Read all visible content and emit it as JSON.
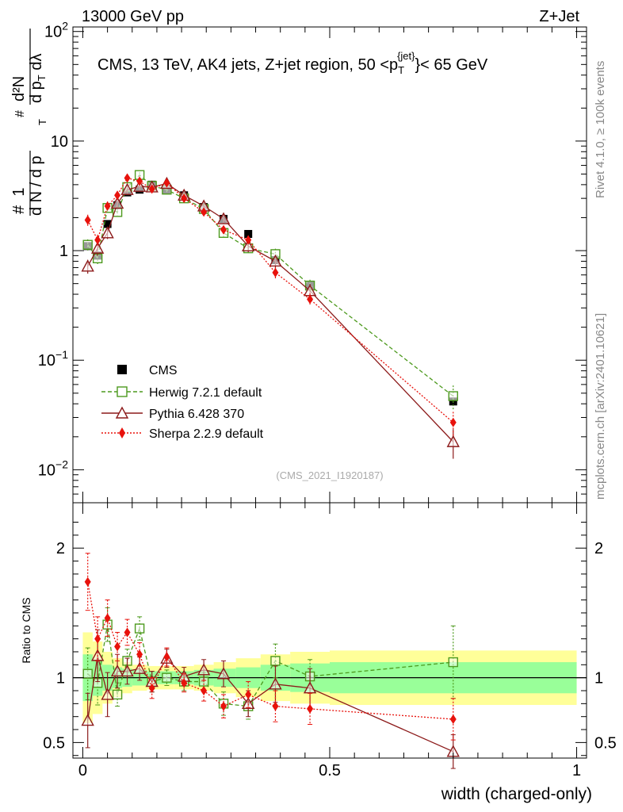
{
  "header": {
    "left": "13000 GeV pp",
    "right": "Z+Jet"
  },
  "side_labels": {
    "rivet": "Rivet 4.1.0, ≥ 100k events",
    "mcplots": "mcplots.cern.ch [arXiv:2401.10621]"
  },
  "chart_data": [
    {
      "type": "scatter",
      "panel": "main",
      "title_parts": [
        "CMS, 13 TeV, AK4 jets, Z+jet region, 50 <p",
        "T",
        "{jet}",
        "}< 65 GeV"
      ],
      "ylabel_parts": {
        "prefix": "#",
        "one": "1",
        "den": "d N / d p",
        "den_sub": "T",
        "num_hash": "#",
        "num": "d²N",
        "num_den": "d p",
        "num_den_sub": "T",
        "num_den_tail": " dλ"
      },
      "yscale": "log",
      "ylim": [
        0.005,
        110
      ],
      "xlim": [
        -0.02,
        1.02
      ],
      "y_ticks": [
        {
          "value": 0.01,
          "base": "10",
          "exp": "−2"
        },
        {
          "value": 0.1,
          "base": "10",
          "exp": "−1"
        },
        {
          "value": 1,
          "label": "1"
        },
        {
          "value": 10,
          "label": "10"
        },
        {
          "value": 100,
          "base": "10",
          "exp": "2"
        }
      ],
      "watermark": "(CMS_2021_I1920187)",
      "legend_position": "middle-left",
      "series": [
        {
          "name": "CMS",
          "style": "data",
          "color": "#000000",
          "x": [
            0.01,
            0.03,
            0.05,
            0.07,
            0.09,
            0.115,
            0.14,
            0.17,
            0.205,
            0.245,
            0.285,
            0.335,
            0.39,
            0.46,
            0.75
          ],
          "y": [
            1.1,
            0.9,
            1.75,
            2.6,
            3.4,
            3.6,
            4.0,
            3.6,
            3.2,
            2.5,
            1.95,
            1.42,
            0.82,
            0.48,
            0.042
          ]
        },
        {
          "name": "Herwig 7.2.1 default",
          "style": "open-square-dashed",
          "color": "#4d9a1e",
          "x": [
            0.01,
            0.03,
            0.05,
            0.07,
            0.09,
            0.115,
            0.14,
            0.17,
            0.205,
            0.245,
            0.285,
            0.335,
            0.39,
            0.46,
            0.75
          ],
          "y": [
            1.13,
            0.85,
            2.45,
            2.25,
            3.8,
            4.9,
            3.9,
            3.6,
            3.0,
            2.4,
            1.45,
            1.05,
            0.93,
            0.48,
            0.047
          ]
        },
        {
          "name": "Pythia 6.428 370",
          "style": "open-triangle-solid",
          "color": "#8c1a1a",
          "x": [
            0.01,
            0.03,
            0.05,
            0.07,
            0.09,
            0.115,
            0.14,
            0.17,
            0.205,
            0.245,
            0.285,
            0.335,
            0.39,
            0.46,
            0.75
          ],
          "y": [
            0.72,
            1.05,
            1.45,
            2.7,
            3.6,
            3.85,
            3.8,
            4.1,
            3.2,
            2.55,
            1.95,
            1.1,
            0.8,
            0.43,
            0.018
          ]
        },
        {
          "name": "Sherpa 2.2.9 default",
          "style": "filled-diamond-dotted",
          "color": "#e8120c",
          "x": [
            0.01,
            0.03,
            0.05,
            0.07,
            0.09,
            0.115,
            0.14,
            0.17,
            0.205,
            0.245,
            0.285,
            0.335,
            0.39,
            0.46,
            0.75
          ],
          "y": [
            1.9,
            1.25,
            2.55,
            3.2,
            4.6,
            4.3,
            3.65,
            4.15,
            3.0,
            2.25,
            1.55,
            1.25,
            0.63,
            0.36,
            0.027
          ]
        }
      ]
    },
    {
      "type": "scatter",
      "panel": "ratio",
      "ylabel": "Ratio to CMS",
      "ylim": [
        0.38,
        2.35
      ],
      "xlim": [
        -0.02,
        1.02
      ],
      "xlabel": "width (charged-only)",
      "x_ticks": [
        {
          "value": 0,
          "label": "0"
        },
        {
          "value": 0.5,
          "label": "0.5"
        },
        {
          "value": 1,
          "label": "1"
        }
      ],
      "y_ticks": [
        {
          "value": 0.5,
          "label": "0.5"
        },
        {
          "value": 1,
          "label": "1"
        },
        {
          "value": 2,
          "label": "2"
        }
      ],
      "bands": {
        "bins": [
          0,
          0.02,
          0.04,
          0.06,
          0.08,
          0.1,
          0.13,
          0.155,
          0.185,
          0.225,
          0.265,
          0.31,
          0.36,
          0.42,
          0.5,
          1.0
        ],
        "yellow_half": [
          0.35,
          0.28,
          0.2,
          0.15,
          0.12,
          0.1,
          0.09,
          0.09,
          0.09,
          0.1,
          0.12,
          0.15,
          0.18,
          0.2,
          0.21
        ],
        "green_half": [
          0.18,
          0.14,
          0.1,
          0.08,
          0.07,
          0.06,
          0.05,
          0.05,
          0.05,
          0.06,
          0.07,
          0.08,
          0.1,
          0.11,
          0.12
        ],
        "yellow_color": "#ffff99",
        "green_color": "#99ff99"
      },
      "series": [
        {
          "name": "Herwig 7.2.1 default",
          "x": [
            0.01,
            0.03,
            0.05,
            0.07,
            0.09,
            0.115,
            0.14,
            0.17,
            0.205,
            0.245,
            0.285,
            0.335,
            0.39,
            0.46,
            0.75
          ],
          "y": [
            1.03,
            0.96,
            1.41,
            0.87,
            1.13,
            1.38,
            0.97,
            1.0,
            0.97,
            0.97,
            0.8,
            0.78,
            1.13,
            1.01,
            1.12
          ],
          "err": [
            0.2,
            0.17,
            0.13,
            0.09,
            0.09,
            0.09,
            0.08,
            0.06,
            0.07,
            0.07,
            0.09,
            0.1,
            0.13,
            0.13,
            0.28
          ]
        },
        {
          "name": "Pythia 6.428 370",
          "x": [
            0.01,
            0.03,
            0.05,
            0.07,
            0.09,
            0.115,
            0.14,
            0.17,
            0.205,
            0.245,
            0.285,
            0.335,
            0.39,
            0.46,
            0.75
          ],
          "y": [
            0.67,
            1.17,
            0.87,
            1.05,
            1.05,
            1.07,
            0.97,
            1.15,
            1.01,
            1.06,
            1.03,
            0.8,
            0.95,
            0.92,
            0.43
          ],
          "err": [
            0.21,
            0.2,
            0.17,
            0.13,
            0.1,
            0.09,
            0.08,
            0.07,
            0.07,
            0.08,
            0.1,
            0.1,
            0.14,
            0.15,
            0.13
          ]
        },
        {
          "name": "Sherpa 2.2.9 default",
          "x": [
            0.01,
            0.03,
            0.05,
            0.07,
            0.09,
            0.115,
            0.14,
            0.17,
            0.205,
            0.245,
            0.285,
            0.335,
            0.39,
            0.46,
            0.75
          ],
          "y": [
            1.74,
            1.3,
            1.46,
            1.24,
            1.35,
            1.18,
            0.92,
            1.16,
            0.96,
            0.9,
            0.78,
            0.87,
            0.78,
            0.76,
            0.68
          ],
          "err": [
            0.22,
            0.17,
            0.14,
            0.11,
            0.1,
            0.09,
            0.08,
            0.07,
            0.07,
            0.08,
            0.09,
            0.1,
            0.12,
            0.12,
            0.16
          ]
        }
      ]
    }
  ]
}
